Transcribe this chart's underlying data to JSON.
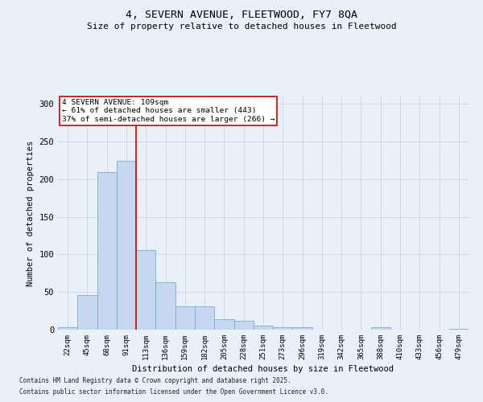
{
  "title_line1": "4, SEVERN AVENUE, FLEETWOOD, FY7 8QA",
  "title_line2": "Size of property relative to detached houses in Fleetwood",
  "xlabel": "Distribution of detached houses by size in Fleetwood",
  "ylabel": "Number of detached properties",
  "categories": [
    "22sqm",
    "45sqm",
    "68sqm",
    "91sqm",
    "113sqm",
    "136sqm",
    "159sqm",
    "182sqm",
    "205sqm",
    "228sqm",
    "251sqm",
    "273sqm",
    "296sqm",
    "319sqm",
    "342sqm",
    "365sqm",
    "388sqm",
    "410sqm",
    "433sqm",
    "456sqm",
    "479sqm"
  ],
  "values": [
    3,
    46,
    210,
    225,
    106,
    63,
    31,
    31,
    14,
    12,
    5,
    3,
    3,
    0,
    0,
    0,
    3,
    0,
    0,
    0,
    1
  ],
  "bar_color": "#c5d8f0",
  "bar_edge_color": "#7aadd4",
  "grid_color": "#d0d8e8",
  "background_color": "#eaf0f8",
  "annotation_text": "4 SEVERN AVENUE: 109sqm\n← 61% of detached houses are smaller (443)\n37% of semi-detached houses are larger (266) →",
  "annotation_box_color": "#ffffff",
  "annotation_box_edge_color": "#cc0000",
  "vline_x": 4.0,
  "vline_color": "#cc0000",
  "ylim": [
    0,
    310
  ],
  "yticks": [
    0,
    50,
    100,
    150,
    200,
    250,
    300
  ],
  "footer_line1": "Contains HM Land Registry data © Crown copyright and database right 2025.",
  "footer_line2": "Contains public sector information licensed under the Open Government Licence v3.0."
}
